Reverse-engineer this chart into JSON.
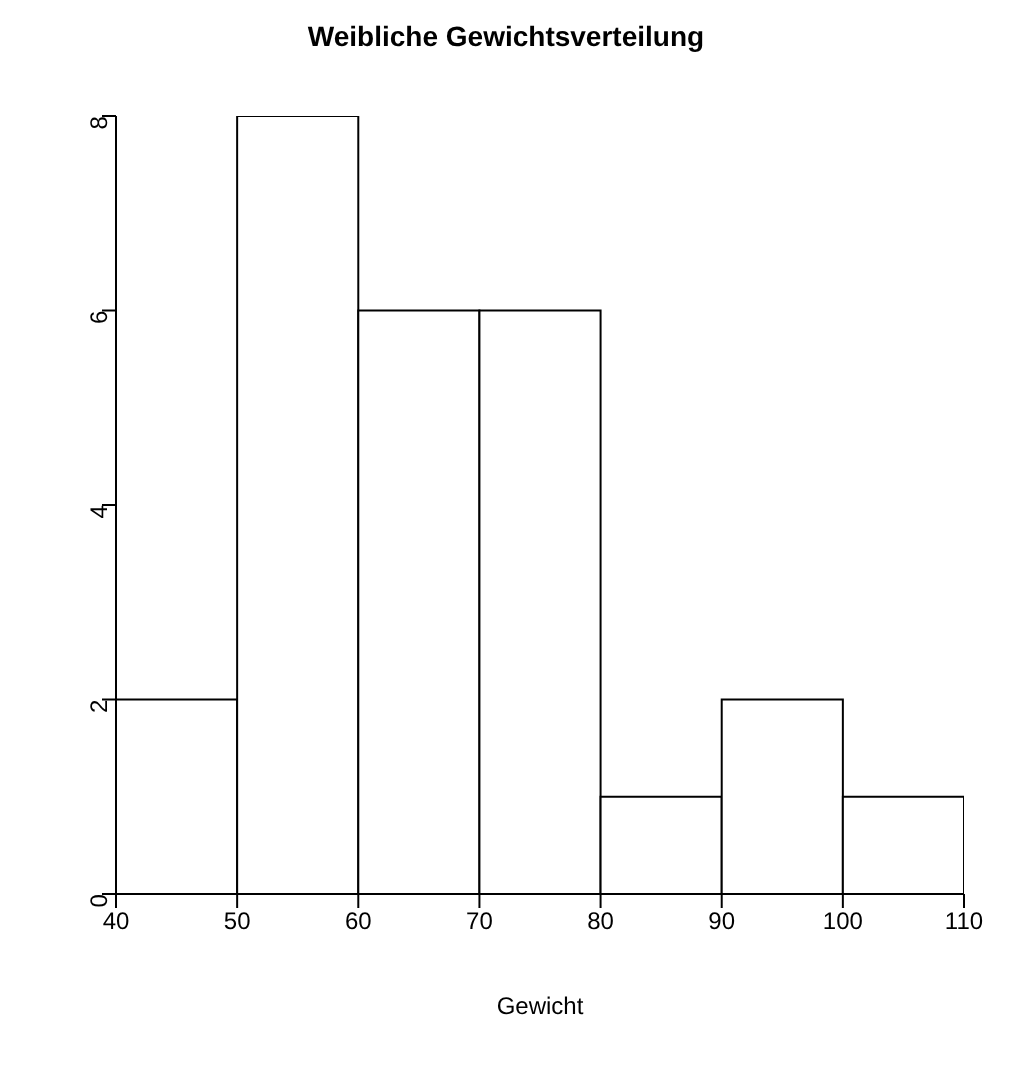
{
  "chart_data": {
    "type": "histogram",
    "title": "Weibliche Gewichtsverteilung",
    "xlabel": "Gewicht",
    "bins": [
      40,
      50,
      60,
      70,
      80,
      90,
      100,
      110
    ],
    "values": [
      2,
      8,
      6,
      6,
      1,
      2,
      1
    ],
    "color": "#ffffff",
    "xlim": [
      40,
      110
    ],
    "xticks": [
      40,
      50,
      60,
      70,
      80,
      90,
      100,
      110
    ],
    "ylim": [
      0,
      8
    ],
    "yticks": [
      0,
      2,
      4,
      6,
      8
    ],
    "grid": false,
    "legend": false
  }
}
